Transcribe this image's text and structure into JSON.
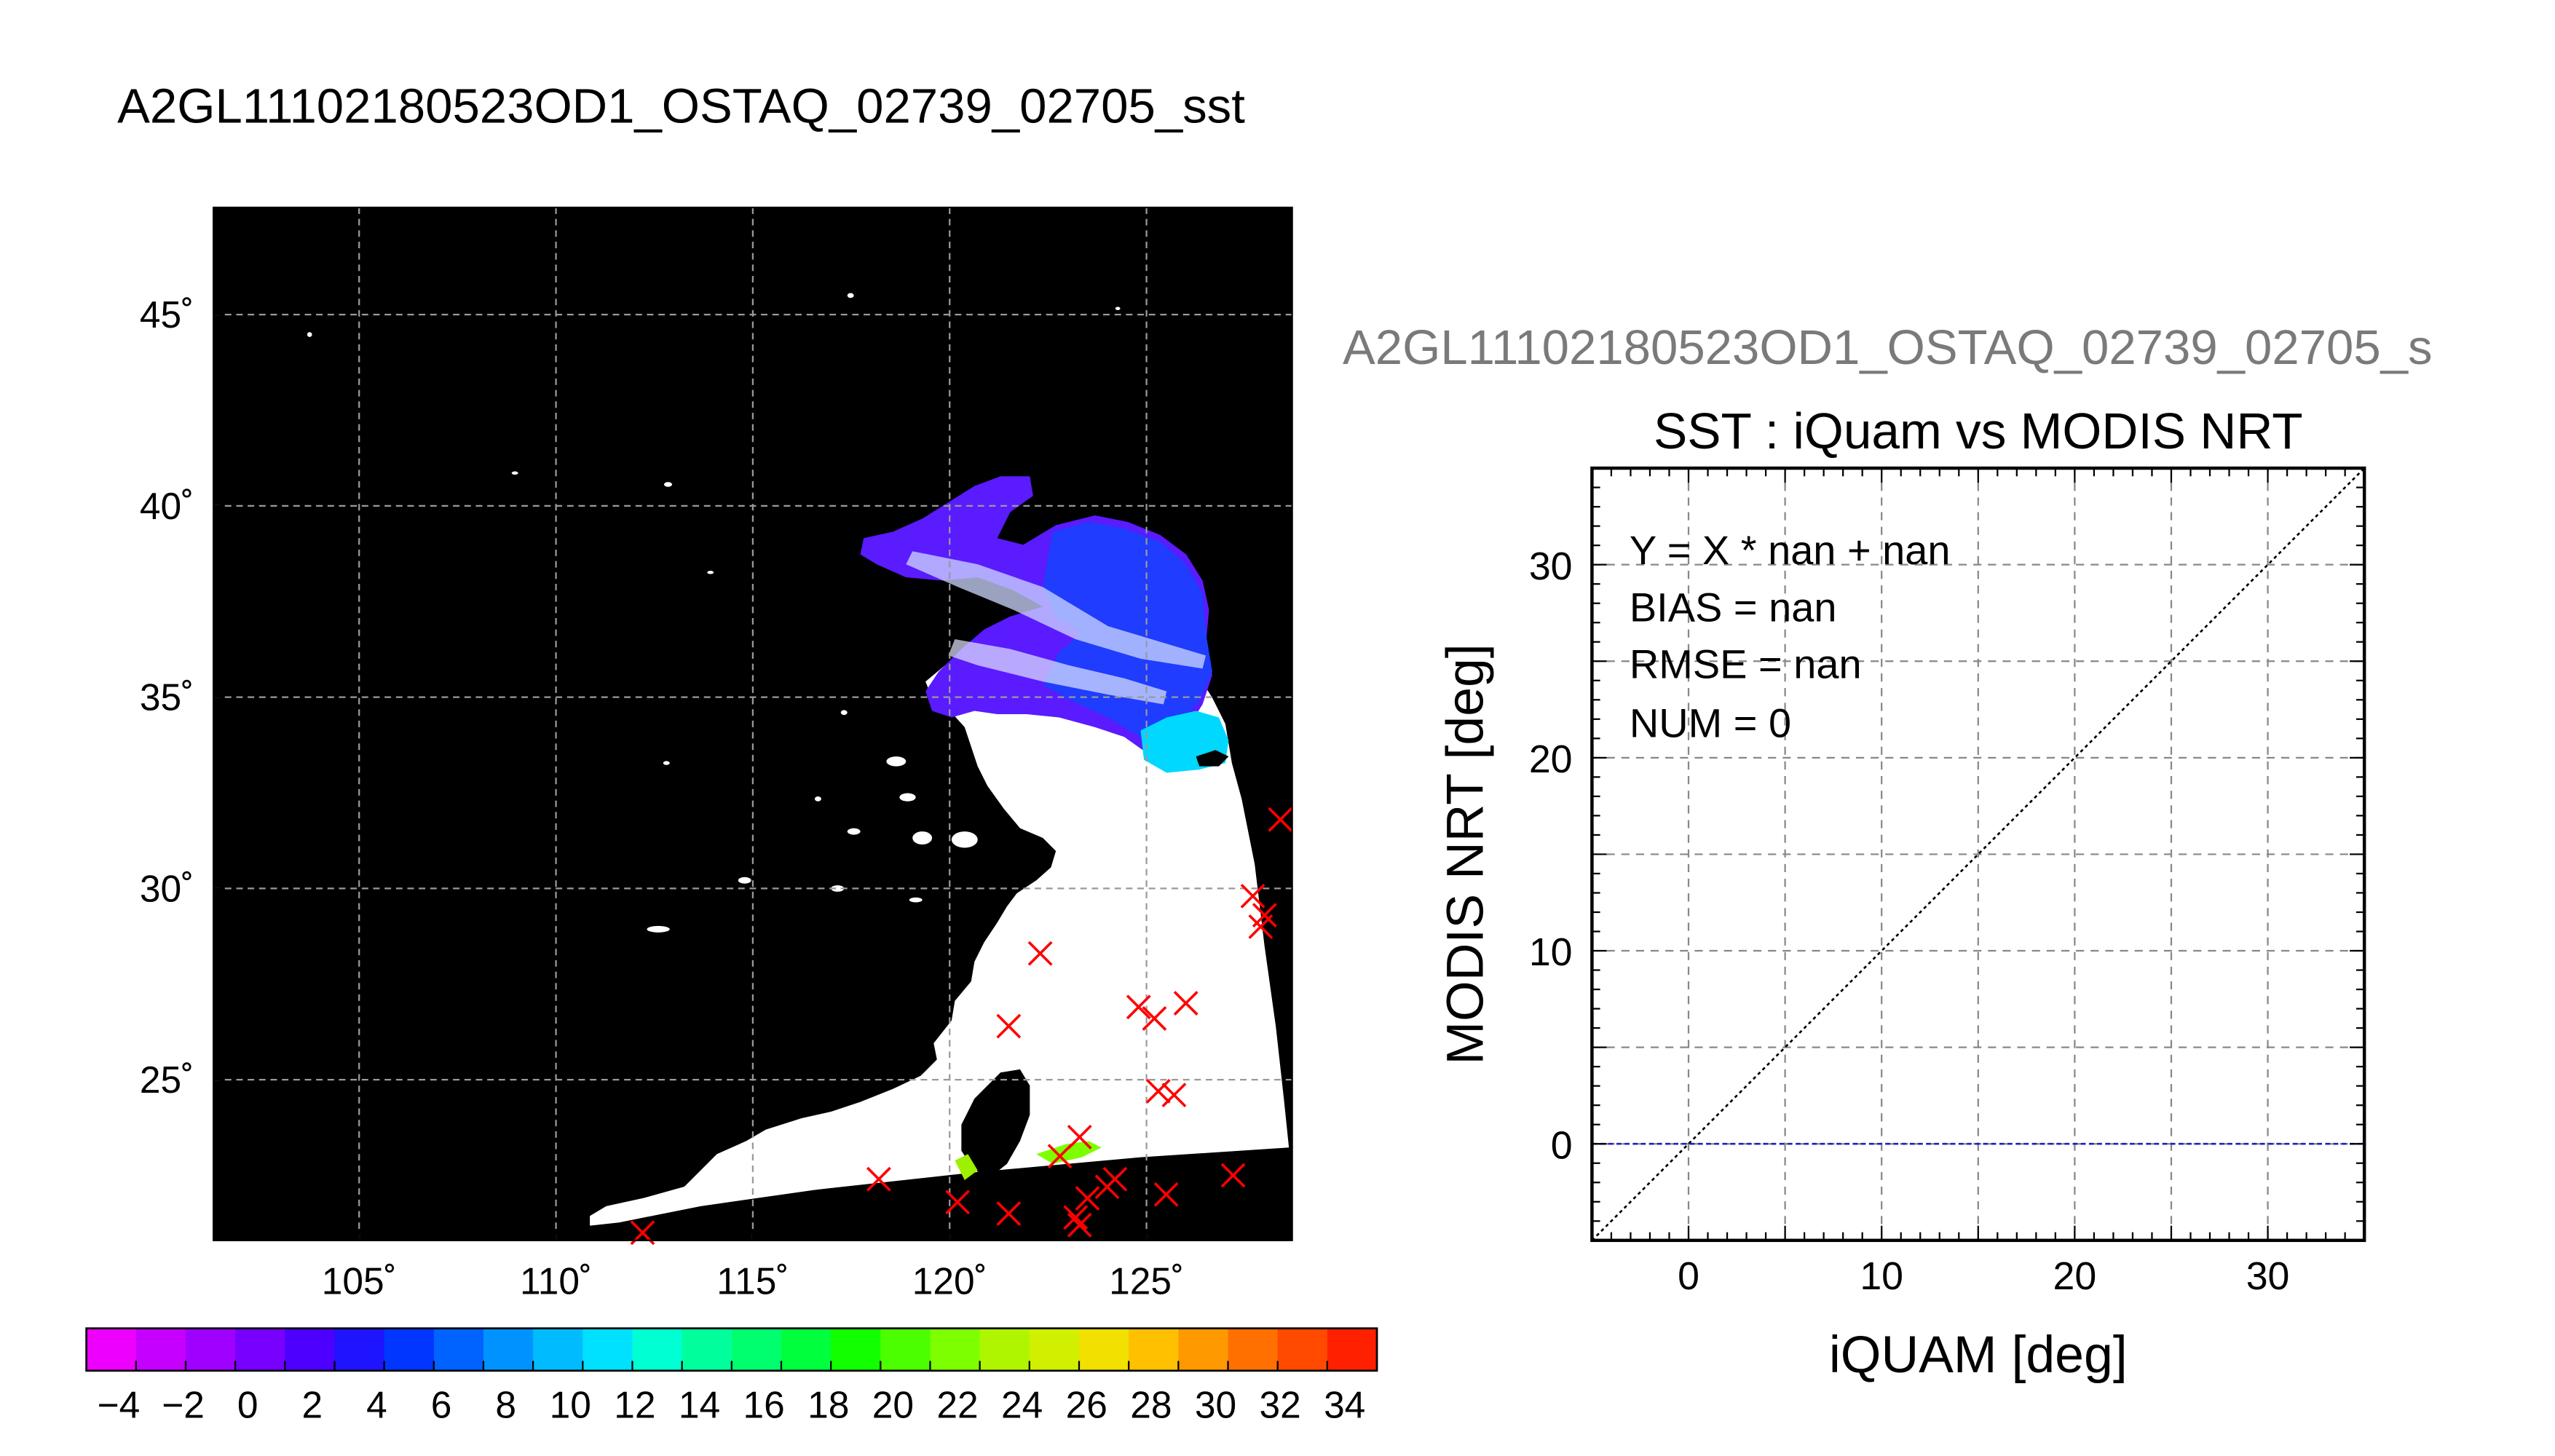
{
  "title": "A2GL11102180523OD1_OSTAQ_02739_02705_sst",
  "chart_data": [
    {
      "type": "heatmap",
      "title": "A2GL11102180523OD1_OSTAQ_02739_02705_sst",
      "xlabel": "",
      "ylabel": "",
      "x_ticks": [
        105,
        110,
        115,
        120,
        125
      ],
      "x_tick_labels": [
        "105˚",
        "110˚",
        "115˚",
        "120˚",
        "125˚"
      ],
      "y_ticks": [
        45,
        40,
        35,
        30,
        25
      ],
      "y_tick_labels": [
        "45˚",
        "40˚",
        "35˚",
        "30˚",
        "25˚"
      ],
      "xlim": [
        101.3,
        128.7
      ],
      "ylim": [
        20.8,
        47.8
      ],
      "grid": true,
      "background_color": "#000000",
      "land_color": "#000000",
      "no_data_color": "#ffffff",
      "marker_color": "#ff0000",
      "markers": [
        {
          "x": 112.2,
          "y": 21.0
        },
        {
          "x": 118.2,
          "y": 22.4
        },
        {
          "x": 120.2,
          "y": 21.8
        },
        {
          "x": 121.5,
          "y": 21.5
        },
        {
          "x": 121.5,
          "y": 26.4
        },
        {
          "x": 122.3,
          "y": 28.3
        },
        {
          "x": 122.8,
          "y": 23.0
        },
        {
          "x": 123.3,
          "y": 23.5
        },
        {
          "x": 123.2,
          "y": 21.4
        },
        {
          "x": 123.3,
          "y": 21.2
        },
        {
          "x": 123.5,
          "y": 21.9
        },
        {
          "x": 124.0,
          "y": 22.2
        },
        {
          "x": 124.2,
          "y": 22.4
        },
        {
          "x": 124.8,
          "y": 26.9
        },
        {
          "x": 125.2,
          "y": 26.6
        },
        {
          "x": 125.3,
          "y": 24.7
        },
        {
          "x": 125.7,
          "y": 24.6
        },
        {
          "x": 125.5,
          "y": 22.0
        },
        {
          "x": 126.0,
          "y": 27.0
        },
        {
          "x": 127.2,
          "y": 22.5
        },
        {
          "x": 127.7,
          "y": 29.8
        },
        {
          "x": 127.9,
          "y": 29.0
        },
        {
          "x": 128.0,
          "y": 29.3
        },
        {
          "x": 128.4,
          "y": 31.8
        }
      ]
    },
    {
      "type": "colorbar",
      "labels": [
        "-4",
        "-2",
        "0",
        "2",
        "4",
        "6",
        "8",
        "10",
        "12",
        "14",
        "16",
        "18",
        "20",
        "22",
        "24",
        "26",
        "28",
        "30",
        "32",
        "34"
      ],
      "range": [
        -5,
        35
      ],
      "colors": [
        "#ee00ff",
        "#c600ff",
        "#9f00ff",
        "#7700ff",
        "#4e00ff",
        "#1e14ff",
        "#0036ff",
        "#0062ff",
        "#0093ff",
        "#00bcff",
        "#00e0ff",
        "#00ffd2",
        "#00ff9c",
        "#00ff6e",
        "#00ff3c",
        "#12ff00",
        "#4cff00",
        "#7dff00",
        "#aff500",
        "#d0f000",
        "#f2e000",
        "#ffc000",
        "#ff9900",
        "#ff7000",
        "#ff4a00",
        "#ff2000"
      ]
    },
    {
      "type": "scatter",
      "suptitle": "A2GL11102180523OD1_OSTAQ_02739_02705_s",
      "title": "SST : iQuam vs MODIS NRT",
      "xlabel": "iQUAM [deg]",
      "ylabel": "MODIS NRT [deg]",
      "xlim": [
        -5,
        35
      ],
      "ylim": [
        -5,
        35
      ],
      "x_ticks": [
        0,
        10,
        20,
        30
      ],
      "y_ticks": [
        0,
        10,
        20,
        30
      ],
      "grid": true,
      "series": [],
      "reference_lines": [
        {
          "kind": "one-to-one",
          "style": "dotted",
          "color": "#000000"
        },
        {
          "kind": "y=0",
          "style": "dashed",
          "color": "#1f1fc0"
        }
      ],
      "stats_text": [
        "Y = X * nan + nan",
        "BIAS = nan",
        "RMSE = nan",
        "NUM = 0"
      ]
    }
  ]
}
